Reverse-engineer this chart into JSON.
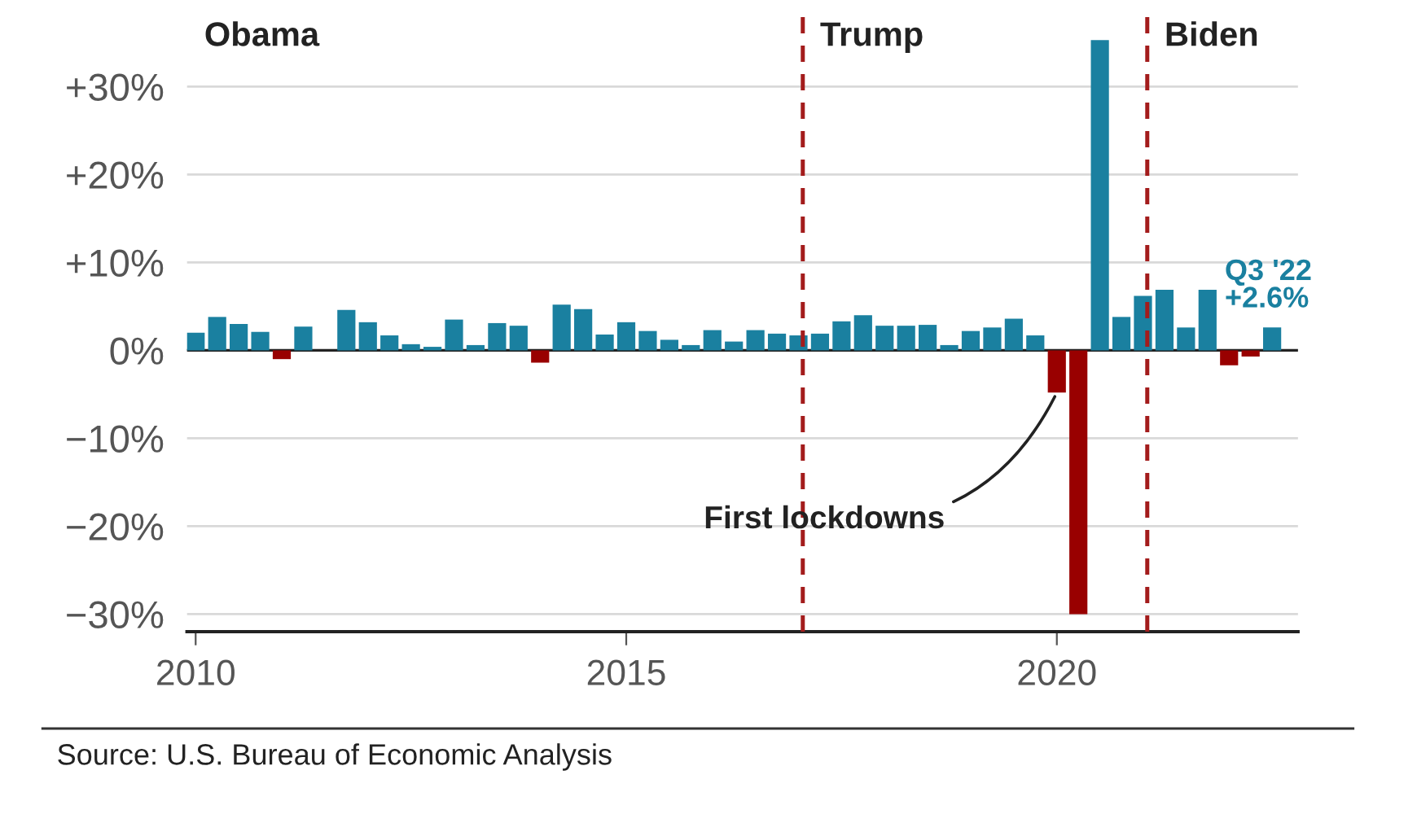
{
  "chart_data": {
    "type": "bar",
    "x": [
      2010.0,
      2010.25,
      2010.5,
      2010.75,
      2011.0,
      2011.25,
      2011.5,
      2011.75,
      2012.0,
      2012.25,
      2012.5,
      2012.75,
      2013.0,
      2013.25,
      2013.5,
      2013.75,
      2014.0,
      2014.25,
      2014.5,
      2014.75,
      2015.0,
      2015.25,
      2015.5,
      2015.75,
      2016.0,
      2016.25,
      2016.5,
      2016.75,
      2017.0,
      2017.25,
      2017.5,
      2017.75,
      2018.0,
      2018.25,
      2018.5,
      2018.75,
      2019.0,
      2019.25,
      2019.5,
      2019.75,
      2020.0,
      2020.25,
      2020.5,
      2020.75,
      2021.0,
      2021.25,
      2021.5,
      2021.75,
      2022.0,
      2022.25,
      2022.5
    ],
    "values": [
      2.0,
      3.8,
      3.0,
      2.1,
      -1.0,
      2.7,
      0,
      4.6,
      3.2,
      1.7,
      0.7,
      0.4,
      3.5,
      0.6,
      3.1,
      2.8,
      -1.4,
      5.2,
      4.7,
      1.8,
      3.2,
      2.2,
      1.2,
      0.6,
      2.3,
      1.0,
      2.3,
      1.9,
      1.7,
      1.9,
      3.3,
      4.0,
      2.8,
      2.8,
      2.9,
      0.6,
      2.2,
      2.6,
      3.6,
      1.7,
      -4.8,
      -30,
      35.3,
      3.8,
      6.2,
      6.9,
      2.6,
      6.9,
      -1.7,
      -0.7,
      2.6
    ],
    "colors": [
      "#1a80a0",
      "#1a80a0",
      "#1a80a0",
      "#1a80a0",
      "#990000",
      "#1a80a0",
      "#1a80a0",
      "#1a80a0",
      "#1a80a0",
      "#1a80a0",
      "#1a80a0",
      "#1a80a0",
      "#1a80a0",
      "#1a80a0",
      "#1a80a0",
      "#1a80a0",
      "#990000",
      "#1a80a0",
      "#1a80a0",
      "#1a80a0",
      "#1a80a0",
      "#1a80a0",
      "#1a80a0",
      "#1a80a0",
      "#1a80a0",
      "#1a80a0",
      "#1a80a0",
      "#1a80a0",
      "#1a80a0",
      "#1a80a0",
      "#1a80a0",
      "#1a80a0",
      "#1a80a0",
      "#1a80a0",
      "#1a80a0",
      "#1a80a0",
      "#1a80a0",
      "#1a80a0",
      "#1a80a0",
      "#1a80a0",
      "#990000",
      "#990000",
      "#1a80a0",
      "#1a80a0",
      "#1a80a0",
      "#1a80a0",
      "#1a80a0",
      "#1a80a0",
      "#990000",
      "#990000",
      "#1a80a0"
    ],
    "xlim": [
      2009.9,
      2022.8
    ],
    "xticks": [
      2010,
      2015,
      2020
    ],
    "ylim": [
      -32,
      38
    ],
    "yticks": [
      {
        "value": -30,
        "label": "−30%"
      },
      {
        "value": -20,
        "label": "−20%"
      },
      {
        "value": -10,
        "label": "−10%"
      },
      {
        "value": 0,
        "label": "0%"
      },
      {
        "value": 10,
        "label": "+10%"
      },
      {
        "value": 20,
        "label": "+20%"
      },
      {
        "value": 30,
        "label": "+30%"
      }
    ],
    "grid": "y",
    "legend": false,
    "ref_lines": [
      {
        "axis": "y",
        "value": 0,
        "color": "#222222",
        "line_style": "solid"
      },
      {
        "axis": "x",
        "value": 2017.05,
        "label": "Trump",
        "color": "#a31c1c",
        "line_style": "dashed"
      },
      {
        "axis": "x",
        "value": 2021.05,
        "label": "Biden",
        "color": "#a31c1c",
        "line_style": "dashed"
      }
    ],
    "annotations": [
      "Obama",
      {
        "text": "First lockdowns",
        "x": 2020.0,
        "y": -4.8
      },
      {
        "text": "Q3 '22\n+2.6%",
        "x": 2022.5,
        "y": 2.6
      },
      "Source: U.S. Bureau of Economic Analysis"
    ]
  }
}
